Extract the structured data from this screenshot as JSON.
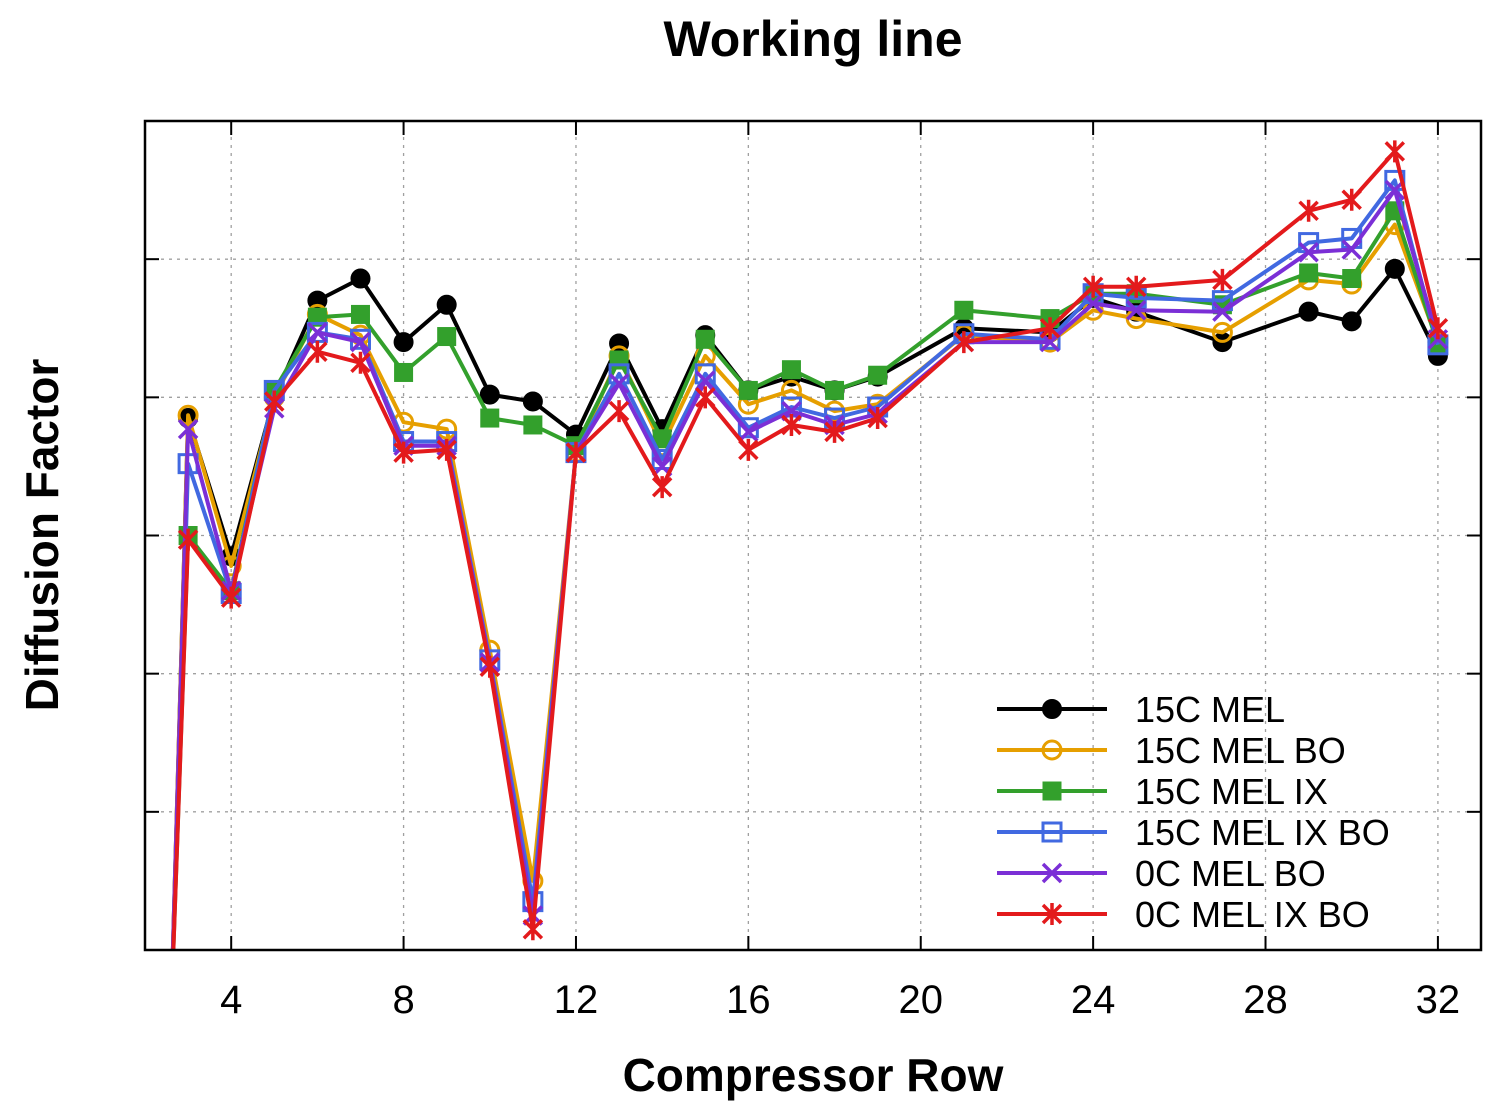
{
  "chart_data": {
    "type": "line",
    "title": "Working line",
    "xlabel": "Compressor Row",
    "ylabel": "Diffusion Factor",
    "xlim": [
      2,
      33
    ],
    "ylim": [
      0,
      6
    ],
    "x_ticks": [
      4,
      8,
      12,
      16,
      20,
      24,
      28,
      32
    ],
    "y_ticks": [
      1,
      2,
      3,
      4,
      5
    ],
    "y_tick_labels_shown": false,
    "grid": true,
    "legend_position": "bottom-right",
    "x": [
      2.6,
      3,
      4,
      5,
      6,
      7,
      8,
      9,
      10,
      11,
      12,
      13,
      14,
      15,
      16,
      17,
      18,
      19,
      21,
      23,
      24,
      25,
      27,
      29,
      30,
      31,
      32
    ],
    "series": [
      {
        "name": "15C MEL",
        "color": "#000000",
        "marker": "filled-circle",
        "values": [
          -0.5,
          3.85,
          2.85,
          4.0,
          4.7,
          4.86,
          4.4,
          4.67,
          4.02,
          3.97,
          3.73,
          4.39,
          3.77,
          4.45,
          4.05,
          4.15,
          4.05,
          4.15,
          4.5,
          4.47,
          4.72,
          4.62,
          4.4,
          4.62,
          4.55,
          4.93,
          4.3
        ]
      },
      {
        "name": "15C MEL BO",
        "color": "#e69f00",
        "marker": "open-circle",
        "values": [
          -0.5,
          3.87,
          2.78,
          4.0,
          4.6,
          4.45,
          3.82,
          3.77,
          2.17,
          0.5,
          3.6,
          4.3,
          3.65,
          4.3,
          3.95,
          4.05,
          3.9,
          3.95,
          4.45,
          4.4,
          4.63,
          4.57,
          4.47,
          4.85,
          4.82,
          5.25,
          4.4
        ]
      },
      {
        "name": "15C MEL IX",
        "color": "#33a02c",
        "marker": "filled-square",
        "values": [
          -0.5,
          3.0,
          2.6,
          4.05,
          4.58,
          4.6,
          4.18,
          4.44,
          3.85,
          3.8,
          3.65,
          4.27,
          3.7,
          4.42,
          4.05,
          4.2,
          4.05,
          4.16,
          4.63,
          4.57,
          4.75,
          4.75,
          4.67,
          4.9,
          4.86,
          5.35,
          4.38
        ]
      },
      {
        "name": "15C MEL IX BO",
        "color": "#4169e1",
        "marker": "open-square",
        "values": [
          -0.5,
          3.52,
          2.58,
          4.05,
          4.47,
          4.42,
          3.68,
          3.68,
          2.1,
          0.35,
          3.6,
          4.17,
          3.55,
          4.17,
          3.78,
          3.93,
          3.85,
          3.93,
          4.46,
          4.42,
          4.75,
          4.72,
          4.7,
          5.12,
          5.15,
          5.57,
          4.38
        ]
      },
      {
        "name": "0C MEL BO",
        "color": "#7b2fd6",
        "marker": "cross",
        "values": [
          -0.5,
          3.77,
          2.6,
          3.92,
          4.47,
          4.4,
          3.65,
          3.65,
          2.08,
          0.25,
          3.6,
          4.1,
          3.5,
          4.12,
          3.75,
          3.9,
          3.8,
          3.88,
          4.4,
          4.4,
          4.68,
          4.63,
          4.62,
          5.05,
          5.07,
          5.5,
          4.42
        ]
      },
      {
        "name": "0C MEL IX BO",
        "color": "#e31a1c",
        "marker": "asterisk",
        "values": [
          -0.5,
          2.97,
          2.55,
          3.97,
          4.33,
          4.25,
          3.6,
          3.62,
          2.05,
          0.15,
          3.6,
          3.9,
          3.35,
          4.0,
          3.62,
          3.8,
          3.75,
          3.85,
          4.4,
          4.5,
          4.8,
          4.8,
          4.85,
          5.35,
          5.43,
          5.78,
          4.5
        ]
      }
    ]
  }
}
